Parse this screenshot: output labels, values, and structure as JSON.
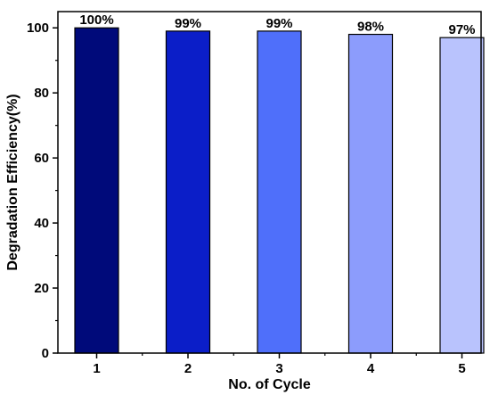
{
  "chart_data": {
    "type": "bar",
    "title": "",
    "xlabel": "No. of Cycle",
    "ylabel": "Degradation Efficiency(%)",
    "categories": [
      "1",
      "2",
      "3",
      "4",
      "5"
    ],
    "values": [
      100,
      99,
      99,
      98,
      97
    ],
    "data_labels": [
      "100%",
      "99%",
      "99%",
      "98%",
      "97%"
    ],
    "colors": [
      "#000a7a",
      "#0b1ec8",
      "#4f6ffa",
      "#8c9cfc",
      "#b9c3fd"
    ],
    "ylim": [
      0,
      105
    ],
    "yticks": [
      0,
      20,
      40,
      60,
      80,
      100
    ],
    "grid": false,
    "legend": "none"
  }
}
